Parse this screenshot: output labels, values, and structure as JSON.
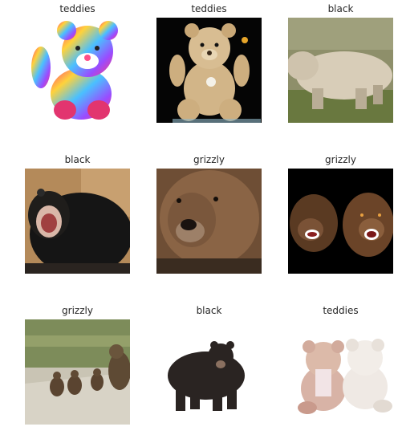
{
  "grid": {
    "items": [
      {
        "label": "teddies",
        "image": "rainbow-teddy-bear"
      },
      {
        "label": "teddies",
        "image": "tan-steiff-teddy-bear"
      },
      {
        "label": "black",
        "image": "pale-bear-walking-grass"
      },
      {
        "label": "black",
        "image": "black-bear-roaring"
      },
      {
        "label": "grizzly",
        "image": "grizzly-face-closeup"
      },
      {
        "label": "grizzly",
        "image": "two-grizzlies-snarling"
      },
      {
        "label": "grizzly",
        "image": "grizzly-mother-cubs-road"
      },
      {
        "label": "black",
        "image": "black-bear-standing-white"
      },
      {
        "label": "teddies",
        "image": "two-teddies-pink-white"
      }
    ]
  }
}
